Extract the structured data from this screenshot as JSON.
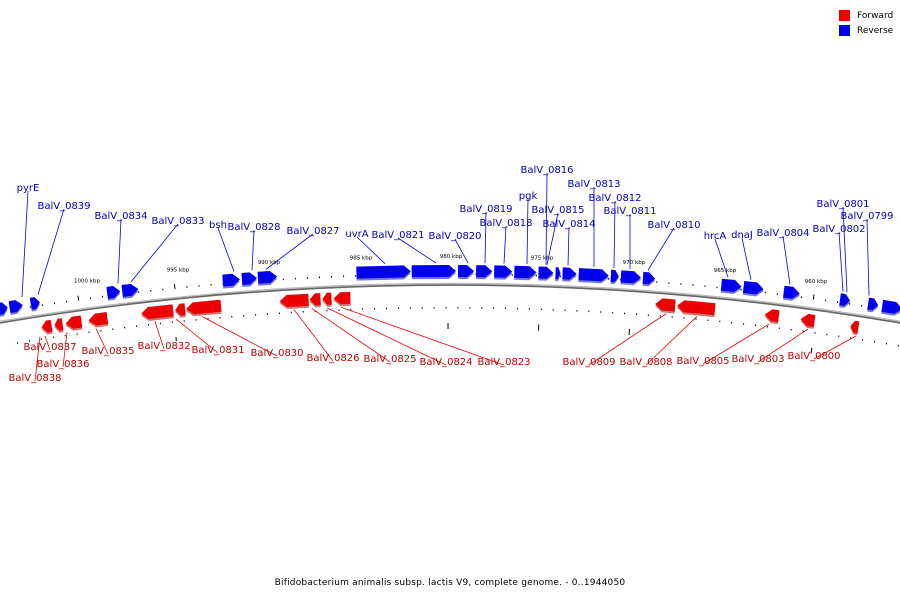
{
  "colors": {
    "forward": "#ee0000",
    "reverse": "#0000ee",
    "backbone": "#888888",
    "forward_label": "#bb0000",
    "reverse_label": "#0000bb"
  },
  "legend": {
    "forward": "Forward",
    "reverse": "Reverse"
  },
  "caption": "Bifidobacterium animalis subsp. lactis V9, complete genome. - 0..1944050",
  "scale_labels": [
    "1000 kbp",
    "995 kbp",
    "990 kbp",
    "985 kbp",
    "980 kbp",
    "975 kbp",
    "970 kbp",
    "965 kbp",
    "960 kbp"
  ],
  "reverse_genes": [
    "pyrE",
    "BalV_0839",
    "BalV_0834",
    "BalV_0833",
    "bsh",
    "BalV_0828",
    "BalV_0827",
    "uvrA",
    "BalV_0821",
    "BalV_0820",
    "BalV_0819",
    "BalV_0818",
    "pgk",
    "BalV_0816",
    "BalV_0815",
    "BalV_0814",
    "BalV_0813",
    "BalV_0812",
    "BalV_0811",
    "BalV_0810",
    "hrcA",
    "dnaJ",
    "BalV_0804",
    "BalV_0802",
    "BalV_0801",
    "BalV_0799"
  ],
  "forward_genes": [
    "BalV_0838",
    "BalV_0837",
    "BalV_0836",
    "BalV_0835",
    "BalV_0832",
    "BalV_0831",
    "BalV_0830",
    "BalV_0826",
    "BalV_0825",
    "BalV_0824",
    "BalV_0823",
    "BalV_0809",
    "BalV_0808",
    "BalV_0805",
    "BalV_0803",
    "BalV_0800"
  ]
}
